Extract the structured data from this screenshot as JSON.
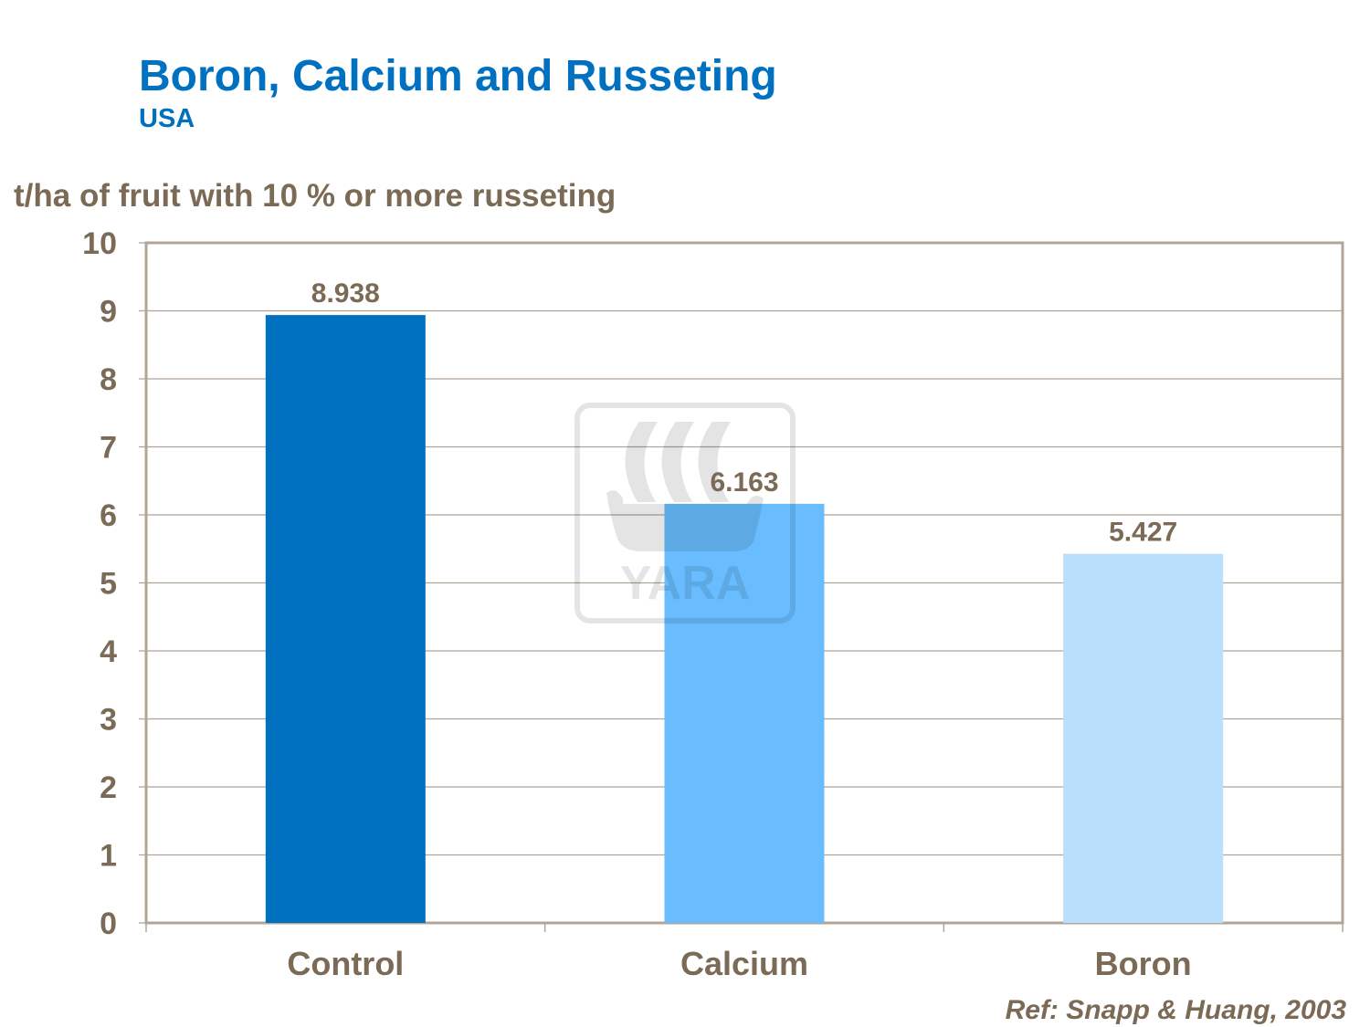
{
  "chart_data": {
    "type": "bar",
    "title": "Boron, Calcium and Russeting",
    "subtitle": "USA",
    "ylabel": "t/ha of fruit with 10 % or more russeting",
    "xlabel": "",
    "categories": [
      "Control",
      "Calcium",
      "Boron"
    ],
    "values": [
      8.938,
      6.163,
      5.427
    ],
    "data_labels": [
      "8.938",
      "6.163",
      "5.427"
    ],
    "bar_colors": [
      "#0070c0",
      "#69bdff",
      "#b9dffd"
    ],
    "ylim": [
      0,
      10
    ],
    "yticks": [
      0,
      1,
      2,
      3,
      4,
      5,
      6,
      7,
      8,
      9,
      10
    ],
    "grid": true,
    "legend": "none",
    "watermark": "YARA",
    "source": "Ref: Snapp & Huang, 2003"
  },
  "colors": {
    "title": "#0070c0",
    "text": "#7b6a55",
    "grid": "#b0a597"
  }
}
